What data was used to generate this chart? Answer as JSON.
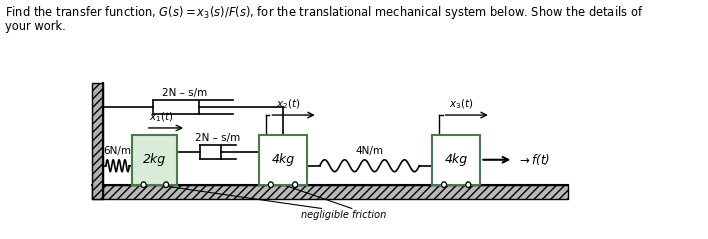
{
  "title_line1": "Find the transfer function, $G(s) = x_3(s)/F(s)$, for the translational mechanical system below. Show the details of",
  "title_line2": "your work.",
  "bg_color": "#ffffff",
  "block_edge_color": "#4a7a4a",
  "block_face_color": "#ffffff",
  "block2_face_color": "#d8ecd8",
  "ground_hatch_color": "#cccccc",
  "wall_face_color": "#aaaaaa",
  "label_2Ns_top": "2N – s/m",
  "label_6Nm": "6N/m",
  "label_x1": "$x_1(t)$",
  "label_x2": "$x_2(t)$",
  "label_x3": "$x_3(t)$",
  "label_2kg": "2kg",
  "label_4kg_left": "4kg",
  "label_4kg_right": "4kg",
  "label_2Ns_mid": "2N – s/m",
  "label_4Nm": "4N/m",
  "label_ft": "f(t)",
  "label_neg_friction": "negligible friction",
  "figsize": [
    7.08,
    2.39
  ],
  "dpi": 100
}
